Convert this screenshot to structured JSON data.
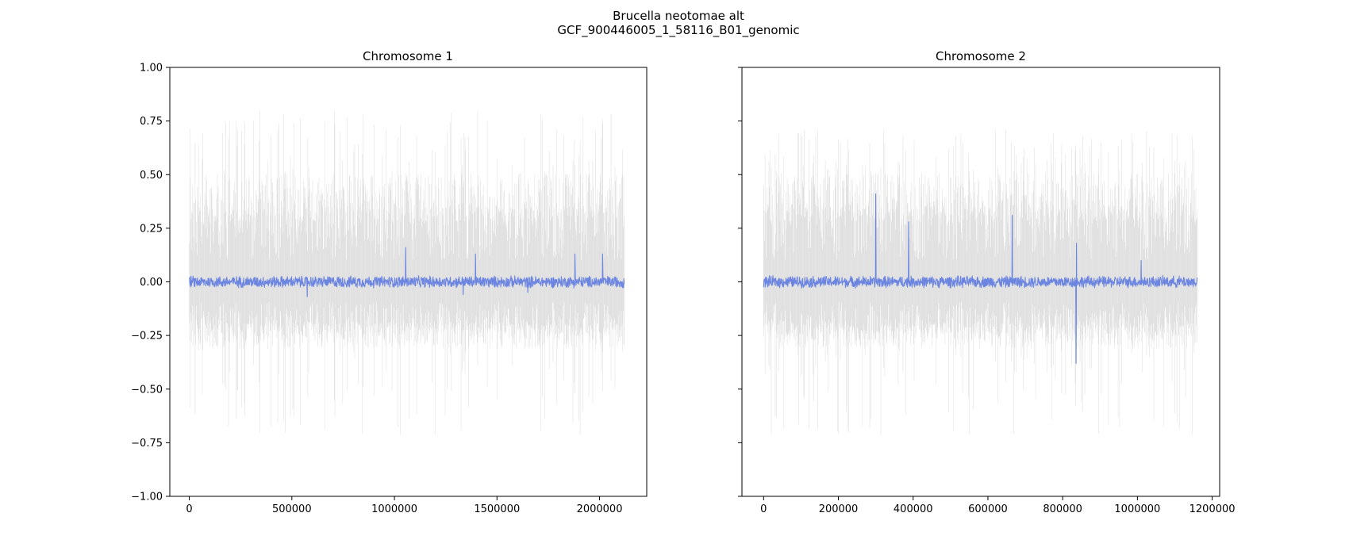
{
  "figure": {
    "title_line1": "Brucella neotomae alt",
    "title_line2": "GCF_900446005_1_58116_B01_genomic"
  },
  "colors": {
    "signal": "#6b85e0",
    "noise": "#c8c8c8",
    "axis": "#000000"
  },
  "chart_data": [
    {
      "type": "line",
      "title": "Chromosome 1",
      "xlim": [
        -95000,
        2230000
      ],
      "ylim": [
        -1.0,
        1.0
      ],
      "x_ticks": [
        {
          "value": 0,
          "label": "0"
        },
        {
          "value": 500000,
          "label": "500000"
        },
        {
          "value": 1000000,
          "label": "1000000"
        },
        {
          "value": 1500000,
          "label": "1500000"
        },
        {
          "value": 2000000,
          "label": "2000000"
        }
      ],
      "y_ticks": [
        {
          "value": 1.0,
          "label": "1.00"
        },
        {
          "value": 0.75,
          "label": "0.75"
        },
        {
          "value": 0.5,
          "label": "0.50"
        },
        {
          "value": 0.25,
          "label": "0.25"
        },
        {
          "value": 0.0,
          "label": "0.00"
        },
        {
          "value": -0.25,
          "label": "−0.25"
        },
        {
          "value": -0.5,
          "label": "−0.50"
        },
        {
          "value": -0.75,
          "label": "−0.75"
        },
        {
          "value": -1.0,
          "label": "−1.00"
        }
      ],
      "y_tick_labels_visible": true,
      "x_range": [
        0,
        2120000
      ],
      "series": [
        {
          "role": "background",
          "band": {
            "typical_top": 0.51,
            "typical_bottom": -0.31,
            "max": 0.81,
            "min": -0.72
          }
        },
        {
          "role": "main",
          "baseline": 0.0,
          "noise_amplitude": 0.03,
          "spikes": [
            {
              "x": 1055000,
              "y": 0.16
            },
            {
              "x": 1395000,
              "y": 0.13
            },
            {
              "x": 1880000,
              "y": 0.13
            },
            {
              "x": 2015000,
              "y": 0.13
            },
            {
              "x": 575000,
              "y": -0.07
            },
            {
              "x": 1335000,
              "y": -0.06
            },
            {
              "x": 1650000,
              "y": -0.05
            }
          ]
        }
      ]
    },
    {
      "type": "line",
      "title": "Chromosome 2",
      "xlim": [
        -58000,
        1220000
      ],
      "ylim": [
        -1.0,
        1.0
      ],
      "x_ticks": [
        {
          "value": 0,
          "label": "0"
        },
        {
          "value": 200000,
          "label": "200000"
        },
        {
          "value": 400000,
          "label": "400000"
        },
        {
          "value": 600000,
          "label": "600000"
        },
        {
          "value": 800000,
          "label": "800000"
        },
        {
          "value": 1000000,
          "label": "1000000"
        },
        {
          "value": 1200000,
          "label": "1200000"
        }
      ],
      "y_ticks": [
        {
          "value": 1.0,
          "label": ""
        },
        {
          "value": 0.75,
          "label": ""
        },
        {
          "value": 0.5,
          "label": ""
        },
        {
          "value": 0.25,
          "label": ""
        },
        {
          "value": 0.0,
          "label": ""
        },
        {
          "value": -0.25,
          "label": ""
        },
        {
          "value": -0.5,
          "label": ""
        },
        {
          "value": -0.75,
          "label": ""
        },
        {
          "value": -1.0,
          "label": ""
        }
      ],
      "y_tick_labels_visible": false,
      "x_range": [
        0,
        1160000
      ],
      "series": [
        {
          "role": "background",
          "band": {
            "typical_top": 0.51,
            "typical_bottom": -0.31,
            "max": 0.71,
            "min": -0.72
          }
        },
        {
          "role": "main",
          "baseline": 0.0,
          "noise_amplitude": 0.03,
          "spikes": [
            {
              "x": 300000,
              "y": 0.41
            },
            {
              "x": 388000,
              "y": 0.28
            },
            {
              "x": 665000,
              "y": 0.31
            },
            {
              "x": 837000,
              "y": 0.18
            },
            {
              "x": 836000,
              "y": -0.38
            },
            {
              "x": 1010000,
              "y": 0.1
            }
          ]
        }
      ]
    }
  ]
}
